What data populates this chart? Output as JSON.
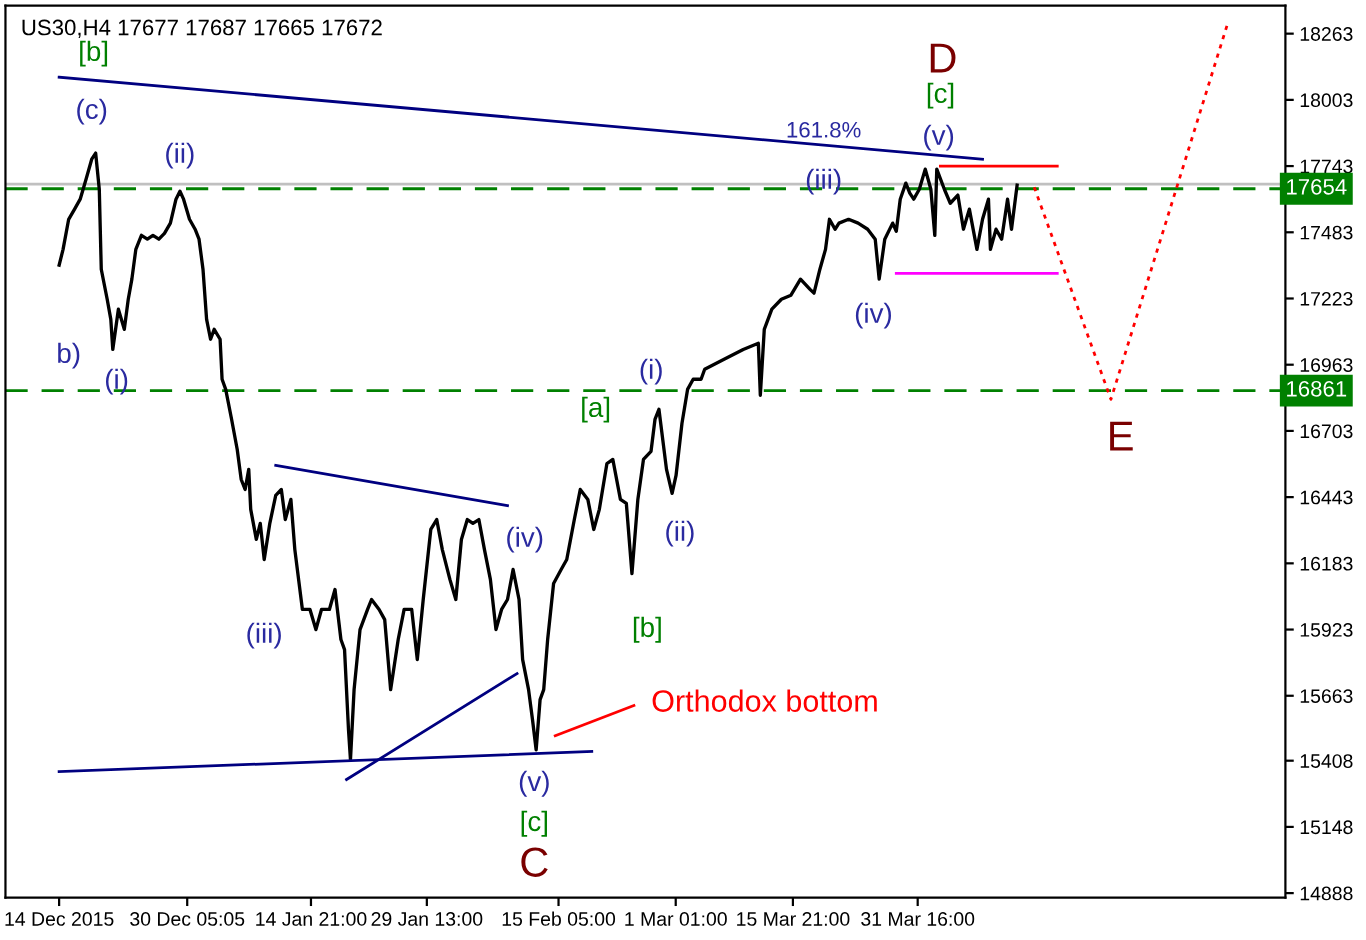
{
  "chart_data": {
    "type": "line",
    "title": "US30,H4 17677 17687 17665 17672",
    "xlim": [
      "2015-12-07T05:00",
      "2016-05-17T05:00"
    ],
    "ylim": [
      14870,
      18373
    ],
    "xticks": [
      {
        "value": "2015-12-14T00:00",
        "label": "14 Dec 2015"
      },
      {
        "value": "2015-12-30T05:05",
        "label": "30 Dec 05:05"
      },
      {
        "value": "2016-01-14T21:00",
        "label": "14 Jan 21:00"
      },
      {
        "value": "2016-01-29T13:00",
        "label": "29 Jan 13:00"
      },
      {
        "value": "2016-02-15T05:00",
        "label": "15 Feb 05:00"
      },
      {
        "value": "2016-03-01T01:00",
        "label": "1 Mar 01:00"
      },
      {
        "value": "2016-03-15T21:00",
        "label": "15 Mar 21:00"
      },
      {
        "value": "2016-03-31T16:00",
        "label": "31 Mar 16:00"
      }
    ],
    "yticks": [
      18263,
      18003,
      17743,
      17483,
      17223,
      16963,
      16703,
      16443,
      16183,
      15923,
      15663,
      15408,
      15148,
      14888
    ],
    "grid": false,
    "legend": false,
    "marker": "none",
    "series": [
      {
        "color": "#000000",
        "line_style": "solid",
        "x": [
          "2015-12-14T00:00",
          "2015-12-14T12:00",
          "2015-12-15T05:00",
          "2015-12-15T23:00",
          "2015-12-16T16:00",
          "2015-12-17T10:00",
          "2015-12-18T03:00",
          "2015-12-18T15:00",
          "2015-12-19T02:00",
          "2015-12-19T08:00",
          "2015-12-20T02:00",
          "2015-12-20T13:00",
          "2015-12-20T19:00",
          "2015-12-21T12:00",
          "2015-12-22T06:00",
          "2015-12-22T18:00",
          "2015-12-23T05:00",
          "2015-12-23T17:00",
          "2015-12-24T10:00",
          "2015-12-25T04:00",
          "2015-12-25T21:00",
          "2015-12-26T15:00",
          "2015-12-27T08:00",
          "2015-12-28T02:00",
          "2015-12-28T19:00",
          "2015-12-29T07:00",
          "2015-12-29T18:00",
          "2015-12-30T12:00",
          "2015-12-31T05:00",
          "2015-12-31T17:00",
          "2016-01-01T05:00",
          "2016-01-01T16:00",
          "2016-01-02T04:00",
          "2016-01-02T15:00",
          "2016-01-03T09:00",
          "2016-01-03T15:00",
          "2016-01-04T02:00",
          "2016-01-04T20:00",
          "2016-01-05T13:00",
          "2016-01-06T01:00",
          "2016-01-06T13:00",
          "2016-01-07T00:00",
          "2016-01-07T06:00",
          "2016-01-07T23:00",
          "2016-01-08T11:00",
          "2016-01-08T23:00",
          "2016-01-09T16:00",
          "2016-01-10T10:00",
          "2016-01-11T03:00",
          "2016-01-11T15:00",
          "2016-01-12T08:00",
          "2016-01-12T20:00",
          "2016-01-13T19:00",
          "2016-01-14T18:00",
          "2016-01-15T12:00",
          "2016-01-16T05:00",
          "2016-01-17T05:00",
          "2016-01-17T22:00",
          "2016-01-18T16:00",
          "2016-01-19T03:00",
          "2016-01-19T15:00",
          "2016-01-19T21:00",
          "2016-01-20T08:00",
          "2016-01-21T02:00",
          "2016-01-22T01:00",
          "2016-01-22T13:00",
          "2016-01-23T12:00",
          "2016-01-24T05:00",
          "2016-01-24T23:00",
          "2016-01-25T22:00",
          "2016-01-26T16:00",
          "2016-01-27T15:00",
          "2016-01-28T08:00",
          "2016-01-29T02:00",
          "2016-01-30T01:00",
          "2016-01-30T19:00",
          "2016-01-31T12:00",
          "2016-02-01T11:00",
          "2016-02-02T05:00",
          "2016-02-02T22:00",
          "2016-02-03T16:00",
          "2016-02-04T09:00",
          "2016-02-05T03:00",
          "2016-02-05T20:00",
          "2016-02-06T14:00",
          "2016-02-07T07:00",
          "2016-02-08T00:00",
          "2016-02-08T18:00",
          "2016-02-09T11:00",
          "2016-02-10T05:00",
          "2016-02-10T16:00",
          "2016-02-11T10:00",
          "2016-02-11T22:00",
          "2016-02-12T09:00",
          "2016-02-12T21:00",
          "2016-02-13T08:00",
          "2016-02-13T20:00",
          "2016-02-14T14:00",
          "2016-02-15T13:00",
          "2016-02-16T06:00",
          "2016-02-17T05:00",
          "2016-02-17T23:00",
          "2016-02-18T22:00",
          "2016-02-19T16:00",
          "2016-02-20T09:00",
          "2016-02-21T08:00",
          "2016-02-22T02:00",
          "2016-02-23T01:00",
          "2016-02-23T19:00",
          "2016-02-24T12:00",
          "2016-02-25T06:00",
          "2016-02-25T23:00",
          "2016-02-26T22:00",
          "2016-02-27T10:00",
          "2016-02-27T22:00",
          "2016-02-28T21:00",
          "2016-02-29T14:00",
          "2016-03-01T02:00",
          "2016-03-01T20:00",
          "2016-03-02T13:00",
          "2016-03-03T06:00",
          "2016-03-04T06:00",
          "2016-03-04T17:00",
          "2016-03-07T04:00",
          "2016-03-09T14:00",
          "2016-03-11T12:00",
          "2016-03-11T18:00",
          "2016-03-12T06:00",
          "2016-03-13T05:00",
          "2016-03-14T10:00",
          "2016-03-15T15:00",
          "2016-03-16T20:00",
          "2016-03-18T01:00",
          "2016-03-18T13:00",
          "2016-03-19T07:00",
          "2016-03-20T00:00",
          "2016-03-20T12:00",
          "2016-03-21T05:00",
          "2016-03-21T17:00",
          "2016-03-22T22:00",
          "2016-03-24T03:00",
          "2016-03-25T08:00",
          "2016-03-26T07:00",
          "2016-03-26T19:00",
          "2016-03-27T12:00",
          "2016-03-28T12:00",
          "2016-03-28T23:00",
          "2016-03-29T11:00",
          "2016-03-30T04:00",
          "2016-03-30T16:00",
          "2016-03-31T04:00",
          "2016-03-31T21:00",
          "2016-04-01T15:00",
          "2016-04-02T08:00",
          "2016-04-02T20:00",
          "2016-04-03T02:00",
          "2016-04-04T01:00",
          "2016-04-04T19:00",
          "2016-04-05T18:00",
          "2016-04-06T11:00",
          "2016-04-07T05:00",
          "2016-04-08T04:00",
          "2016-04-08T21:00",
          "2016-04-09T15:00",
          "2016-04-09T21:00",
          "2016-04-10T14:00",
          "2016-04-11T07:00",
          "2016-04-12T01:00",
          "2016-04-12T13:00",
          "2016-04-13T06:00"
        ],
        "values": [
          17354,
          17416,
          17534,
          17574,
          17613,
          17692,
          17770,
          17794,
          17652,
          17338,
          17220,
          17141,
          17023,
          17181,
          17102,
          17220,
          17299,
          17416,
          17471,
          17456,
          17471,
          17456,
          17479,
          17519,
          17613,
          17644,
          17613,
          17534,
          17495,
          17456,
          17338,
          17141,
          17063,
          17102,
          17063,
          16906,
          16866,
          16748,
          16630,
          16513,
          16473,
          16552,
          16395,
          16277,
          16340,
          16198,
          16340,
          16450,
          16473,
          16355,
          16434,
          16237,
          16002,
          16002,
          15923,
          16002,
          16002,
          16080,
          15884,
          15844,
          15530,
          15412,
          15687,
          15923,
          16002,
          16041,
          16002,
          15962,
          15687,
          15884,
          16002,
          16002,
          15805,
          16041,
          16316,
          16355,
          16237,
          16120,
          16041,
          16277,
          16355,
          16340,
          16355,
          16237,
          16120,
          15923,
          16002,
          16041,
          16159,
          16041,
          15805,
          15687,
          15569,
          15451,
          15648,
          15687,
          15884,
          16104,
          16159,
          16198,
          16355,
          16473,
          16434,
          16316,
          16395,
          16575,
          16591,
          16434,
          16418,
          16143,
          16434,
          16591,
          16623,
          16748,
          16788,
          16552,
          16458,
          16528,
          16733,
          16866,
          16906,
          16906,
          16945,
          16984,
          17023,
          17047,
          16843,
          17102,
          17181,
          17220,
          17236,
          17299,
          17259,
          17244,
          17338,
          17416,
          17534,
          17495,
          17519,
          17534,
          17519,
          17495,
          17456,
          17299,
          17456,
          17519,
          17487,
          17613,
          17676,
          17637,
          17613,
          17652,
          17731,
          17652,
          17471,
          17731,
          17652,
          17597,
          17629,
          17495,
          17574,
          17416,
          17534,
          17613,
          17416,
          17495,
          17456,
          17613,
          17495,
          17668
        ]
      },
      {
        "color": "#000080",
        "line_style": "solid",
        "x": [
          "2015-12-14T00:00",
          "2016-04-08T21:00"
        ],
        "values": [
          18092,
          17770
        ]
      },
      {
        "color": "#000080",
        "line_style": "solid",
        "x": [
          "2016-01-10T10:00",
          "2016-02-08T18:00"
        ],
        "values": [
          16568,
          16410
        ]
      },
      {
        "color": "#000080",
        "line_style": "solid",
        "x": [
          "2016-01-19T09:00",
          "2016-02-09T23:00"
        ],
        "values": [
          15334,
          15750
        ]
      },
      {
        "color": "#000080",
        "line_style": "solid",
        "x": [
          "2015-12-14T00:00",
          "2016-02-19T10:00"
        ],
        "values": [
          15365,
          15444
        ]
      },
      {
        "color": "#ff0000",
        "line_style": "solid",
        "x": [
          "2016-04-03T13:00",
          "2016-04-18T08:00"
        ],
        "values": [
          17743,
          17743
        ]
      },
      {
        "color": "#ff00ff",
        "line_style": "solid",
        "x": [
          "2016-03-28T23:00",
          "2016-04-18T08:00"
        ],
        "values": [
          17322,
          17322
        ]
      },
      {
        "color": "#ff0000",
        "line_style": "dotted",
        "x": [
          "2016-04-15T10:00",
          "2016-04-25T03:00",
          "2016-05-09T22:00"
        ],
        "values": [
          17660,
          16827,
          18305
        ]
      },
      {
        "color": "#ff0000",
        "line_style": "solid",
        "x": [
          "2016-02-14T19:00",
          "2016-02-24T18:00"
        ],
        "values": [
          15506,
          15625
        ]
      }
    ],
    "ref_lines": [
      {
        "axis": "y",
        "value": 17672,
        "label": null,
        "color": "#c0c0c0",
        "line_style": "solid"
      },
      {
        "axis": "y",
        "value": 17654,
        "label": "17654",
        "color": "#008000",
        "line_style": "dashed"
      },
      {
        "axis": "y",
        "value": 16861,
        "label": "16861",
        "color": "#008000",
        "line_style": "dashed"
      }
    ],
    "annotations": [
      "[b]",
      "(c)",
      "(ii)",
      "b)",
      "(i)",
      "(iii)",
      "(iv)",
      "(v)",
      "[c]",
      "C",
      "[a]",
      "(i)",
      "(ii)",
      "[b]",
      "161.8%",
      "(iii)",
      "(iv)",
      "(v)",
      "[c]",
      "D",
      "E",
      "Orthodox bottom"
    ]
  }
}
